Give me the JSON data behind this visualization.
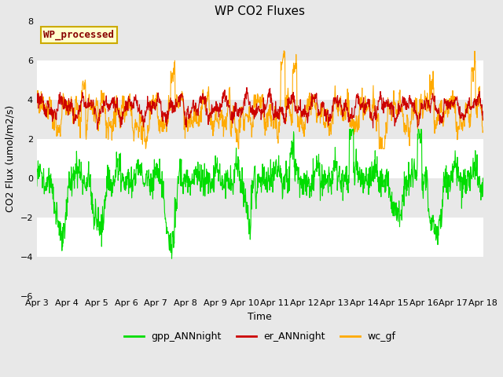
{
  "title": "WP CO2 Fluxes",
  "xlabel": "Time",
  "ylabel": "CO2 Flux (umol/m2/s)",
  "ylim": [
    -6,
    8
  ],
  "yticks": [
    -6,
    -4,
    -2,
    0,
    2,
    4,
    6,
    8
  ],
  "n_days": 15,
  "n_per_day": 96,
  "date_labels": [
    "Apr 3",
    "Apr 4",
    "Apr 5",
    "Apr 6",
    "Apr 7",
    "Apr 8",
    "Apr 9",
    "Apr 10",
    "Apr 11",
    "Apr 12",
    "Apr 13",
    "Apr 14",
    "Apr 15",
    "Apr 16",
    "Apr 17",
    "Apr 18"
  ],
  "color_er": "#cc0000",
  "color_wc": "#ffaa00",
  "color_gpp": "#00dd00",
  "legend_label_text": "WP_processed",
  "legend_text_color": "#880000",
  "legend_box_facecolor": "#ffffcc",
  "legend_box_edgecolor": "#ccaa00",
  "line_width": 0.8,
  "fig_bg_color": "#e8e8e8",
  "plot_bg_color": "#ffffff",
  "title_fontsize": 11,
  "label_fontsize": 9,
  "tick_fontsize": 8,
  "legend_fontsize": 9,
  "band_color": "#e8e8e8"
}
